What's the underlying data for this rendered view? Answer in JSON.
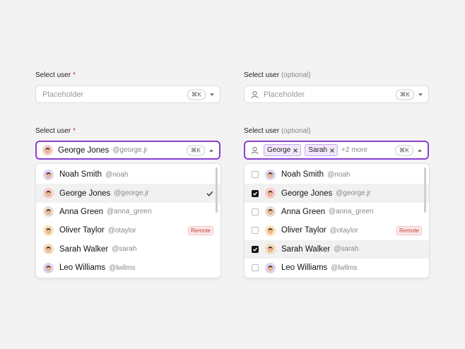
{
  "fields": [
    {
      "label": "Select user",
      "required": "*",
      "placeholder": "Placeholder",
      "shortcut": "⌘K"
    },
    {
      "label": "Select user",
      "optional": "(optional)",
      "placeholder": "Placeholder",
      "shortcut": "⌘K"
    },
    {
      "label": "Select user",
      "required": "*",
      "selected": {
        "name": "George Jones",
        "handle": "@george.jr"
      },
      "shortcut": "⌘K",
      "options": [
        {
          "name": "Noah Smith",
          "handle": "@noah",
          "avatar_color": "#ddd3f3"
        },
        {
          "name": "George Jones",
          "handle": "@george.jr",
          "avatar_color": "#f6cccc",
          "highlighted": true,
          "checked": true
        },
        {
          "name": "Anna Green",
          "handle": "@anna_green",
          "avatar_color": "#e8ddd0"
        },
        {
          "name": "Oliver Taylor",
          "handle": "@otaylor",
          "avatar_color": "#f8e2b4",
          "badge": "Remote"
        },
        {
          "name": "Sarah Walker",
          "handle": "@sarah",
          "avatar_color": "#f3dcbc"
        },
        {
          "name": "Leo Williams",
          "handle": "@lwllms",
          "avatar_color": "#ddd3f3"
        }
      ]
    },
    {
      "label": "Select user",
      "optional": "(optional)",
      "chips": [
        "George",
        "Sarah"
      ],
      "more": "+2 more",
      "shortcut": "⌘K",
      "options": [
        {
          "name": "Noah Smith",
          "handle": "@noah",
          "avatar_color": "#ddd3f3"
        },
        {
          "name": "George Jones",
          "handle": "@george.jr",
          "avatar_color": "#f6cccc",
          "highlighted": true,
          "checked": true
        },
        {
          "name": "Anna Green",
          "handle": "@anna_green",
          "avatar_color": "#e8ddd0"
        },
        {
          "name": "Oliver Taylor",
          "handle": "@otaylor",
          "avatar_color": "#f8e2b4",
          "badge": "Remote"
        },
        {
          "name": "Sarah Walker",
          "handle": "@sarah",
          "avatar_color": "#f3dcbc",
          "highlighted": true,
          "checked": true
        },
        {
          "name": "Leo Williams",
          "handle": "@lwllms",
          "avatar_color": "#ddd3f3"
        }
      ]
    }
  ]
}
